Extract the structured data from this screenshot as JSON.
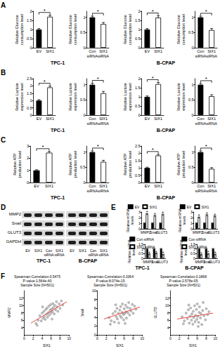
{
  "panel_labels": [
    "A",
    "B",
    "C",
    "D",
    "E",
    "F"
  ],
  "cell_lines": [
    "TPC-1",
    "B-CPAP"
  ],
  "chart_data": [
    {
      "type": "bar",
      "ylabel": "Relative Glucose consumption level",
      "categories": [
        "EV",
        "SIX1"
      ],
      "values": [
        1,
        1.7
      ],
      "errors": [
        0.05,
        0.08
      ],
      "colors": [
        "#000000",
        "#ffffff"
      ],
      "significance": "*",
      "ylim": [
        0,
        2
      ],
      "yticks": [
        0,
        0.5,
        1,
        1.5,
        2
      ],
      "grid": false
    },
    {
      "type": "bar",
      "ylabel": "Relative Glucose consumption level",
      "categories": [
        "Con siRNA",
        "SIX1 siRNA"
      ],
      "values": [
        1,
        0.78
      ],
      "errors": [
        0.04,
        0.05
      ],
      "colors": [
        "#000000",
        "#ffffff"
      ],
      "significance": "*",
      "ylim": [
        0,
        1.2
      ],
      "yticks": [
        0,
        0.5,
        1
      ],
      "grid": false
    },
    {
      "type": "bar",
      "ylabel": "Relative Glucose consumption level",
      "categories": [
        "EV",
        "SIX1"
      ],
      "values": [
        1,
        1.65
      ],
      "errors": [
        0.05,
        0.1
      ],
      "colors": [
        "#000000",
        "#ffffff"
      ],
      "significance": "*",
      "ylim": [
        0,
        2
      ],
      "yticks": [
        0,
        0.5,
        1,
        1.5,
        2
      ],
      "grid": false
    },
    {
      "type": "bar",
      "ylabel": "Relative Glucose consumption level",
      "categories": [
        "Con siRNA",
        "SIX1 siRNA"
      ],
      "values": [
        1,
        0.58
      ],
      "errors": [
        0.04,
        0.05
      ],
      "colors": [
        "#000000",
        "#ffffff"
      ],
      "significance": "*",
      "ylim": [
        0,
        1.2
      ],
      "yticks": [
        0,
        0.5,
        1
      ],
      "grid": false
    },
    {
      "type": "bar",
      "ylabel": "Relative Lactate expression level",
      "categories": [
        "EV",
        "SIX1"
      ],
      "values": [
        1,
        1.9
      ],
      "errors": [
        0.06,
        0.09
      ],
      "colors": [
        "#000000",
        "#ffffff"
      ],
      "significance": "*",
      "ylim": [
        0,
        2.5
      ],
      "yticks": [
        0,
        0.5,
        1,
        1.5,
        2,
        2.5
      ],
      "grid": false
    },
    {
      "type": "bar",
      "ylabel": "Relative Lactate expression level",
      "categories": [
        "Con siRNA",
        "SIX1 siRNA"
      ],
      "values": [
        1,
        0.72
      ],
      "errors": [
        0.05,
        0.06
      ],
      "colors": [
        "#000000",
        "#ffffff"
      ],
      "significance": "*",
      "ylim": [
        0,
        1.2
      ],
      "yticks": [
        0,
        0.5,
        1
      ],
      "grid": false
    },
    {
      "type": "bar",
      "ylabel": "Relative Lactate expression level",
      "categories": [
        "EV",
        "SIX1"
      ],
      "values": [
        1,
        1.7
      ],
      "errors": [
        0.05,
        0.09
      ],
      "colors": [
        "#000000",
        "#ffffff"
      ],
      "significance": "*",
      "ylim": [
        0,
        2
      ],
      "yticks": [
        0,
        0.5,
        1,
        1.5,
        2
      ],
      "grid": false
    },
    {
      "type": "bar",
      "ylabel": "Relative Lactate expression level",
      "categories": [
        "Con siRNA",
        "SIX1 siRNA"
      ],
      "values": [
        1,
        0.62
      ],
      "errors": [
        0.04,
        0.05
      ],
      "colors": [
        "#000000",
        "#ffffff"
      ],
      "significance": "*",
      "ylim": [
        0,
        1.2
      ],
      "yticks": [
        0,
        0.5,
        1
      ],
      "grid": false
    },
    {
      "type": "bar",
      "ylabel": "Relative ATP production level",
      "categories": [
        "EV",
        "SIX1"
      ],
      "values": [
        1,
        2.45
      ],
      "errors": [
        0.05,
        0.1
      ],
      "colors": [
        "#000000",
        "#ffffff"
      ],
      "significance": "*",
      "ylim": [
        0,
        3
      ],
      "yticks": [
        0,
        1,
        2,
        3
      ],
      "grid": false
    },
    {
      "type": "bar",
      "ylabel": "Relative ATP production level",
      "categories": [
        "Con siRNA",
        "SIX1 siRNA"
      ],
      "values": [
        1,
        0.68
      ],
      "errors": [
        0.04,
        0.05
      ],
      "colors": [
        "#000000",
        "#ffffff"
      ],
      "significance": "*",
      "ylim": [
        0,
        1.2
      ],
      "yticks": [
        0,
        0.5,
        1
      ],
      "grid": false
    },
    {
      "type": "bar",
      "ylabel": "Relative ATP production level",
      "categories": [
        "EV",
        "SIX1"
      ],
      "values": [
        1,
        1.85
      ],
      "errors": [
        0.05,
        0.08
      ],
      "colors": [
        "#000000",
        "#ffffff"
      ],
      "significance": "*",
      "ylim": [
        0,
        2.5
      ],
      "yticks": [
        0,
        0.5,
        1,
        1.5,
        2,
        2.5
      ],
      "grid": false
    },
    {
      "type": "bar",
      "ylabel": "Relative ATP production level",
      "categories": [
        "Con siRNA",
        "SIX1 siRNA"
      ],
      "values": [
        1,
        0.45
      ],
      "errors": [
        0.04,
        0.04
      ],
      "colors": [
        "#000000",
        "#ffffff"
      ],
      "significance": "*",
      "ylim": [
        0,
        1.2
      ],
      "yticks": [
        0,
        0.5,
        1
      ],
      "grid": false
    },
    {
      "type": "bar",
      "ylabel": "Relative mRNA levels",
      "categories": [
        "MMP2",
        "Snail",
        "GLUT3"
      ],
      "series": [
        {
          "name": "EV",
          "color": "#000000",
          "values": [
            1,
            1,
            1
          ],
          "errors": [
            0.05,
            0.05,
            0.05
          ]
        },
        {
          "name": "SIX1",
          "color": "#ffffff",
          "values": [
            2.6,
            2.3,
            2.5
          ],
          "errors": [
            0.12,
            0.1,
            0.12
          ]
        }
      ],
      "significance": "*",
      "legend": "top",
      "ylim": [
        0,
        3
      ],
      "yticks": [
        0,
        1,
        2,
        3
      ],
      "grid": false
    },
    {
      "type": "bar",
      "ylabel": "Relative mRNA levels",
      "categories": [
        "MMP2",
        "Snail",
        "GLUT3"
      ],
      "series": [
        {
          "name": "EV",
          "color": "#000000",
          "values": [
            1,
            1,
            1
          ],
          "errors": [
            0.05,
            0.05,
            0.05
          ]
        },
        {
          "name": "SIX1",
          "color": "#ffffff",
          "values": [
            2.0,
            2.4,
            2.2
          ],
          "errors": [
            0.1,
            0.12,
            0.1
          ]
        }
      ],
      "significance": "*",
      "legend": "top",
      "ylim": [
        0,
        3
      ],
      "yticks": [
        0,
        1,
        2,
        3
      ],
      "grid": false
    },
    {
      "type": "bar",
      "ylabel": "Relative mRNA levels",
      "categories": [
        "MMP2",
        "Snail",
        "GLUT3"
      ],
      "series": [
        {
          "name": "Con siRNA",
          "color": "#000000",
          "values": [
            1,
            1,
            1
          ],
          "errors": [
            0.04,
            0.04,
            0.04
          ]
        },
        {
          "name": "SIX1 siRNA",
          "color": "#ffffff",
          "values": [
            0.42,
            0.5,
            0.38
          ],
          "errors": [
            0.04,
            0.05,
            0.04
          ]
        }
      ],
      "significance": "*",
      "legend": "top",
      "ylim": [
        0,
        1.5
      ],
      "yticks": [
        0,
        0.5,
        1,
        1.5
      ],
      "grid": false
    },
    {
      "type": "bar",
      "ylabel": "Relative mRNA levels",
      "categories": [
        "MMP2",
        "Snail",
        "GLUT3"
      ],
      "series": [
        {
          "name": "Con siRNA",
          "color": "#000000",
          "values": [
            1,
            1,
            1
          ],
          "errors": [
            0.04,
            0.04,
            0.04
          ]
        },
        {
          "name": "SIX1 siRNA",
          "color": "#ffffff",
          "values": [
            0.35,
            0.45,
            0.4
          ],
          "errors": [
            0.04,
            0.04,
            0.04
          ]
        }
      ],
      "significance": "*",
      "legend": "top",
      "ylim": [
        0,
        1.5
      ],
      "yticks": [
        0,
        0.5,
        1,
        1.5
      ],
      "grid": false
    },
    {
      "type": "scatter",
      "title": "Spearman-Correlation:0.5475\nP-value:1.564e-40\nSample Size:(N=501)",
      "xlabel": "SIX1",
      "ylabel": "MMP2",
      "xlim": [
        0,
        10
      ],
      "xticks": [
        0,
        2,
        4,
        6,
        8,
        10
      ],
      "ylim": [
        2,
        14
      ],
      "yticks": [
        4,
        6,
        8,
        10,
        12
      ],
      "grid": false,
      "series": [
        {
          "type": "scatter",
          "color": "#555555",
          "marker": "circle",
          "x": [
            3.1,
            3.5,
            3.8,
            4.0,
            4.2,
            4.4,
            4.5,
            4.7,
            4.8,
            5.0,
            5.1,
            5.2,
            5.4,
            5.5,
            5.6,
            5.8,
            5.9,
            6.0,
            6.1,
            6.3,
            6.4,
            6.5,
            6.7,
            6.8,
            7.0,
            7.2,
            7.3,
            7.5,
            7.8,
            8.0,
            8.3,
            2.6,
            2.9,
            8.6,
            4.1,
            6.2
          ],
          "values": [
            6.0,
            7.2,
            5.8,
            7.9,
            6.5,
            8.4,
            7.0,
            6.2,
            8.9,
            7.6,
            9.3,
            6.8,
            8.1,
            9.8,
            7.4,
            8.7,
            10.2,
            7.9,
            9.0,
            8.3,
            10.5,
            9.4,
            7.7,
            10.0,
            8.8,
            11.0,
            9.6,
            8.4,
            10.4,
            9.2,
            11.2,
            5.1,
            4.6,
            10.1,
            9.6,
            6.3
          ]
        },
        {
          "type": "line",
          "color": "#e8493f",
          "line_style": "solid",
          "x": [
            1.5,
            9.5
          ],
          "values": [
            5.2,
            11.0
          ]
        }
      ]
    },
    {
      "type": "scatter",
      "title": "Spearman-Correlation:0.3364\nP-value:8.074e-15\nSample Size:(N=501)",
      "xlabel": "SIX1",
      "ylabel": "Snail",
      "xlim": [
        0,
        10
      ],
      "xticks": [
        0,
        2,
        4,
        6,
        8,
        10
      ],
      "ylim": [
        0,
        10
      ],
      "yticks": [
        0,
        2,
        4,
        6,
        8,
        10
      ],
      "grid": false,
      "series": [
        {
          "type": "scatter",
          "color": "#555555",
          "marker": "circle",
          "x": [
            3.1,
            3.5,
            3.8,
            4.0,
            4.2,
            4.4,
            4.5,
            4.7,
            4.8,
            5.0,
            5.1,
            5.2,
            5.4,
            5.5,
            5.6,
            5.8,
            5.9,
            6.0,
            6.1,
            6.3,
            6.4,
            6.5,
            6.7,
            6.8,
            7.0,
            7.2,
            7.3,
            7.5,
            7.8,
            8.0,
            8.3,
            2.6,
            2.9,
            8.6,
            4.1,
            6.2
          ],
          "values": [
            3.2,
            4.8,
            2.9,
            5.3,
            4.1,
            6.0,
            3.6,
            4.9,
            2.7,
            5.6,
            4.3,
            6.4,
            3.9,
            5.1,
            7.0,
            4.6,
            3.4,
            5.9,
            4.8,
            6.7,
            5.2,
            3.8,
            6.2,
            5.0,
            7.3,
            4.5,
            6.0,
            5.4,
            6.9,
            4.9,
            6.5,
            3.9,
            2.4,
            5.8,
            6.8,
            2.6
          ]
        },
        {
          "type": "line",
          "color": "#e8493f",
          "line_style": "solid",
          "x": [
            1.5,
            9.5
          ],
          "values": [
            3.6,
            6.3
          ]
        }
      ]
    },
    {
      "type": "scatter",
      "title": "Spearman-Correlation:0.1868\nP-value:2.578e-05\nSample Size:(N=501)",
      "xlabel": "SIX1",
      "ylabel": "GLUT3",
      "xlim": [
        0,
        10
      ],
      "xticks": [
        0,
        2,
        4,
        6,
        8,
        10
      ],
      "ylim": [
        2,
        14
      ],
      "yticks": [
        4,
        6,
        8,
        10,
        12
      ],
      "grid": false,
      "series": [
        {
          "type": "scatter",
          "color": "#555555",
          "marker": "circle",
          "x": [
            3.1,
            3.5,
            3.8,
            4.0,
            4.2,
            4.4,
            4.5,
            4.7,
            4.8,
            5.0,
            5.1,
            5.2,
            5.4,
            5.5,
            5.6,
            5.8,
            5.9,
            6.0,
            6.1,
            6.3,
            6.4,
            6.5,
            6.7,
            6.8,
            7.0,
            7.2,
            7.3,
            7.5,
            7.8,
            8.0,
            8.3,
            2.6,
            2.9,
            8.6,
            4.1,
            6.2
          ],
          "values": [
            5.8,
            7.9,
            6.4,
            8.8,
            5.2,
            7.1,
            9.3,
            6.0,
            7.7,
            4.9,
            8.4,
            6.7,
            9.9,
            5.6,
            7.3,
            8.9,
            6.2,
            10.4,
            7.0,
            5.4,
            8.1,
            9.6,
            6.6,
            7.8,
            4.8,
            8.6,
            10.8,
            7.2,
            6.1,
            9.1,
            7.5,
            6.9,
            5.0,
            8.3,
            10.1,
            4.3
          ]
        },
        {
          "type": "line",
          "color": "#e8493f",
          "line_style": "solid",
          "x": [
            1.5,
            9.5
          ],
          "values": [
            6.3,
            7.9
          ]
        }
      ]
    }
  ],
  "blot": {
    "rows": [
      "MMP2",
      "Snail",
      "GLUT3",
      "GAPDH"
    ],
    "lanes": [
      "EV",
      "SIX1",
      "Con siRNA",
      "SIX1 siRNA"
    ],
    "groups": [
      "TPC-1",
      "B-CPAP"
    ]
  }
}
